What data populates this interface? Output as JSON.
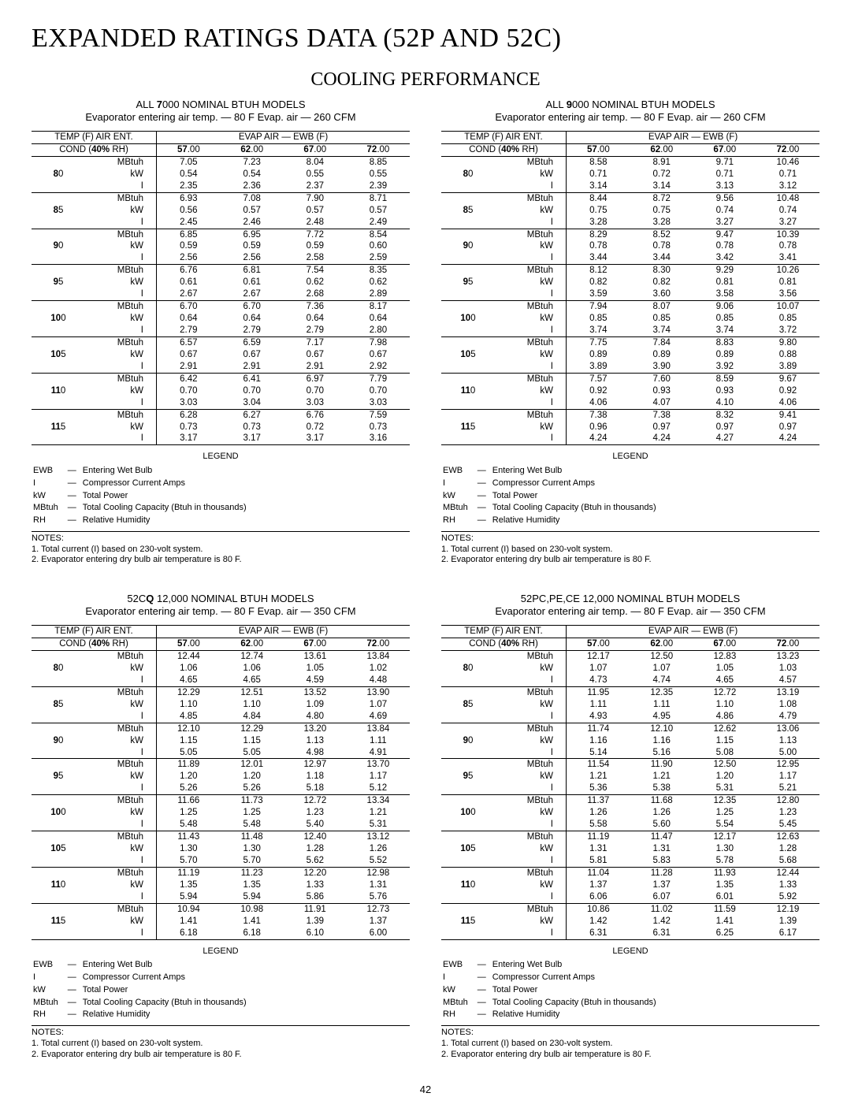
{
  "page": {
    "mainTitle": "EXPANDED RATINGS DATA (52P AND 52C)",
    "sectionTitle": "COOLING PERFORMANCE",
    "pageNumber": "42"
  },
  "common": {
    "tempHeader1": "TEMP (F) AIR ENT.",
    "tempHeader2a": "COND (",
    "tempHeader2b": "40%",
    "tempHeader2c": " RH)",
    "evapHeader": "EVAP AIR — EWB (F)",
    "cols": [
      "57.00",
      "62.00",
      "67.00",
      "72.00"
    ],
    "colsBold": [
      "57",
      "62",
      "67",
      "72"
    ],
    "metrics": [
      "MBtuh",
      "kW",
      "I"
    ],
    "legendTitle": "LEGEND",
    "legend": [
      [
        "EWB",
        "Entering Wet Bulb"
      ],
      [
        "I",
        "Compressor Current Amps"
      ],
      [
        "kW",
        "Total Power"
      ],
      [
        "MBtuh",
        "Total Cooling Capacity (Btuh in thousands)"
      ],
      [
        "RH",
        "Relative Humidity"
      ]
    ],
    "notesTitle": "NOTES:",
    "notes": [
      "1. Total current (I) based on 230-volt system.",
      "2. Evaporator entering dry bulb air temperature is 80 F."
    ]
  },
  "tables": [
    {
      "title1a": "ALL ",
      "title1b": "7",
      "title1c": "000 NOMINAL BTUH MODELS",
      "title2": "Evaporator entering air temp. — 80 F Evap. air — 260 CFM",
      "temps": [
        "80",
        "85",
        "90",
        "95",
        "100",
        "105",
        "110",
        "115"
      ],
      "rows": [
        [
          [
            "7.05",
            "7.23",
            "8.04",
            "8.85"
          ],
          [
            "0.54",
            "0.54",
            "0.55",
            "0.55"
          ],
          [
            "2.35",
            "2.36",
            "2.37",
            "2.39"
          ]
        ],
        [
          [
            "6.93",
            "7.08",
            "7.90",
            "8.71"
          ],
          [
            "0.56",
            "0.57",
            "0.57",
            "0.57"
          ],
          [
            "2.45",
            "2.46",
            "2.48",
            "2.49"
          ]
        ],
        [
          [
            "6.85",
            "6.95",
            "7.72",
            "8.54"
          ],
          [
            "0.59",
            "0.59",
            "0.59",
            "0.60"
          ],
          [
            "2.56",
            "2.56",
            "2.58",
            "2.59"
          ]
        ],
        [
          [
            "6.76",
            "6.81",
            "7.54",
            "8.35"
          ],
          [
            "0.61",
            "0.61",
            "0.62",
            "0.62"
          ],
          [
            "2.67",
            "2.67",
            "2.68",
            "2.89"
          ]
        ],
        [
          [
            "6.70",
            "6.70",
            "7.36",
            "8.17"
          ],
          [
            "0.64",
            "0.64",
            "0.64",
            "0.64"
          ],
          [
            "2.79",
            "2.79",
            "2.79",
            "2.80"
          ]
        ],
        [
          [
            "6.57",
            "6.59",
            "7.17",
            "7.98"
          ],
          [
            "0.67",
            "0.67",
            "0.67",
            "0.67"
          ],
          [
            "2.91",
            "2.91",
            "2.91",
            "2.92"
          ]
        ],
        [
          [
            "6.42",
            "6.41",
            "6.97",
            "7.79"
          ],
          [
            "0.70",
            "0.70",
            "0.70",
            "0.70"
          ],
          [
            "3.03",
            "3.04",
            "3.03",
            "3.03"
          ]
        ],
        [
          [
            "6.28",
            "6.27",
            "6.76",
            "7.59"
          ],
          [
            "0.73",
            "0.73",
            "0.72",
            "0.73"
          ],
          [
            "3.17",
            "3.17",
            "3.17",
            "3.16"
          ]
        ]
      ]
    },
    {
      "title1a": "ALL ",
      "title1b": "9",
      "title1c": "000 NOMINAL BTUH MODELS",
      "title2": "Evaporator entering air temp. — 80 F Evap. air — 260 CFM",
      "temps": [
        "80",
        "85",
        "90",
        "95",
        "100",
        "105",
        "110",
        "115"
      ],
      "rows": [
        [
          [
            "8.58",
            "8.91",
            "9.71",
            "10.46"
          ],
          [
            "0.71",
            "0.72",
            "0.71",
            "0.71"
          ],
          [
            "3.14",
            "3.14",
            "3.13",
            "3.12"
          ]
        ],
        [
          [
            "8.44",
            "8.72",
            "9.56",
            "10.48"
          ],
          [
            "0.75",
            "0.75",
            "0.74",
            "0.74"
          ],
          [
            "3.28",
            "3.28",
            "3.27",
            "3.27"
          ]
        ],
        [
          [
            "8.29",
            "8.52",
            "9.47",
            "10.39"
          ],
          [
            "0.78",
            "0.78",
            "0.78",
            "0.78"
          ],
          [
            "3.44",
            "3.44",
            "3.42",
            "3.41"
          ]
        ],
        [
          [
            "8.12",
            "8.30",
            "9.29",
            "10.26"
          ],
          [
            "0.82",
            "0.82",
            "0.81",
            "0.81"
          ],
          [
            "3.59",
            "3.60",
            "3.58",
            "3.56"
          ]
        ],
        [
          [
            "7.94",
            "8.07",
            "9.06",
            "10.07"
          ],
          [
            "0.85",
            "0.85",
            "0.85",
            "0.85"
          ],
          [
            "3.74",
            "3.74",
            "3.74",
            "3.72"
          ]
        ],
        [
          [
            "7.75",
            "7.84",
            "8.83",
            "9.80"
          ],
          [
            "0.89",
            "0.89",
            "0.89",
            "0.88"
          ],
          [
            "3.89",
            "3.90",
            "3.92",
            "3.89"
          ]
        ],
        [
          [
            "7.57",
            "7.60",
            "8.59",
            "9.67"
          ],
          [
            "0.92",
            "0.93",
            "0.93",
            "0.92"
          ],
          [
            "4.06",
            "4.07",
            "4.10",
            "4.06"
          ]
        ],
        [
          [
            "7.38",
            "7.38",
            "8.32",
            "9.41"
          ],
          [
            "0.96",
            "0.97",
            "0.97",
            "0.97"
          ],
          [
            "4.24",
            "4.24",
            "4.27",
            "4.24"
          ]
        ]
      ]
    },
    {
      "title1a": "52C",
      "title1b": "Q",
      "title1c": " 12,000 NOMINAL BTUH MODELS",
      "title2": "Evaporator entering air temp. — 80 F Evap. air — 350 CFM",
      "temps": [
        "80",
        "85",
        "90",
        "95",
        "100",
        "105",
        "110",
        "115"
      ],
      "rows": [
        [
          [
            "12.44",
            "12.74",
            "13.61",
            "13.84"
          ],
          [
            "1.06",
            "1.06",
            "1.05",
            "1.02"
          ],
          [
            "4.65",
            "4.65",
            "4.59",
            "4.48"
          ]
        ],
        [
          [
            "12.29",
            "12.51",
            "13.52",
            "13.90"
          ],
          [
            "1.10",
            "1.10",
            "1.09",
            "1.07"
          ],
          [
            "4.85",
            "4.84",
            "4.80",
            "4.69"
          ]
        ],
        [
          [
            "12.10",
            "12.29",
            "13.20",
            "13.84"
          ],
          [
            "1.15",
            "1.15",
            "1.13",
            "1.11"
          ],
          [
            "5.05",
            "5.05",
            "4.98",
            "4.91"
          ]
        ],
        [
          [
            "11.89",
            "12.01",
            "12.97",
            "13.70"
          ],
          [
            "1.20",
            "1.20",
            "1.18",
            "1.17"
          ],
          [
            "5.26",
            "5.26",
            "5.18",
            "5.12"
          ]
        ],
        [
          [
            "11.66",
            "11.73",
            "12.72",
            "13.34"
          ],
          [
            "1.25",
            "1.25",
            "1.23",
            "1.21"
          ],
          [
            "5.48",
            "5.48",
            "5.40",
            "5.31"
          ]
        ],
        [
          [
            "11.43",
            "11.48",
            "12.40",
            "13.12"
          ],
          [
            "1.30",
            "1.30",
            "1.28",
            "1.26"
          ],
          [
            "5.70",
            "5.70",
            "5.62",
            "5.52"
          ]
        ],
        [
          [
            "11.19",
            "11.23",
            "12.20",
            "12.98"
          ],
          [
            "1.35",
            "1.35",
            "1.33",
            "1.31"
          ],
          [
            "5.94",
            "5.94",
            "5.86",
            "5.76"
          ]
        ],
        [
          [
            "10.94",
            "10.98",
            "11.91",
            "12.73"
          ],
          [
            "1.41",
            "1.41",
            "1.39",
            "1.37"
          ],
          [
            "6.18",
            "6.18",
            "6.10",
            "6.00"
          ]
        ]
      ]
    },
    {
      "title1a": "",
      "title1b": "",
      "title1c": "52PC,PE,CE 12,000 NOMINAL BTUH MODELS",
      "title2": "Evaporator entering air temp. — 80 F Evap. air — 350 CFM",
      "temps": [
        "80",
        "85",
        "90",
        "95",
        "100",
        "105",
        "110",
        "115"
      ],
      "rows": [
        [
          [
            "12.17",
            "12.50",
            "12.83",
            "13.23"
          ],
          [
            "1.07",
            "1.07",
            "1.05",
            "1.03"
          ],
          [
            "4.73",
            "4.74",
            "4.65",
            "4.57"
          ]
        ],
        [
          [
            "11.95",
            "12.35",
            "12.72",
            "13.19"
          ],
          [
            "1.11",
            "1.11",
            "1.10",
            "1.08"
          ],
          [
            "4.93",
            "4.95",
            "4.86",
            "4.79"
          ]
        ],
        [
          [
            "11.74",
            "12.10",
            "12.62",
            "13.06"
          ],
          [
            "1.16",
            "1.16",
            "1.15",
            "1.13"
          ],
          [
            "5.14",
            "5.16",
            "5.08",
            "5.00"
          ]
        ],
        [
          [
            "11.54",
            "11.90",
            "12.50",
            "12.95"
          ],
          [
            "1.21",
            "1.21",
            "1.20",
            "1.17"
          ],
          [
            "5.36",
            "5.38",
            "5.31",
            "5.21"
          ]
        ],
        [
          [
            "11.37",
            "11.68",
            "12.35",
            "12.80"
          ],
          [
            "1.26",
            "1.26",
            "1.25",
            "1.23"
          ],
          [
            "5.58",
            "5.60",
            "5.54",
            "5.45"
          ]
        ],
        [
          [
            "11.19",
            "11.47",
            "12.17",
            "12.63"
          ],
          [
            "1.31",
            "1.31",
            "1.30",
            "1.28"
          ],
          [
            "5.81",
            "5.83",
            "5.78",
            "5.68"
          ]
        ],
        [
          [
            "11.04",
            "11.28",
            "11.93",
            "12.44"
          ],
          [
            "1.37",
            "1.37",
            "1.35",
            "1.33"
          ],
          [
            "6.06",
            "6.07",
            "6.01",
            "5.92"
          ]
        ],
        [
          [
            "10.86",
            "11.02",
            "11.59",
            "12.19"
          ],
          [
            "1.42",
            "1.42",
            "1.41",
            "1.39"
          ],
          [
            "6.31",
            "6.31",
            "6.25",
            "6.17"
          ]
        ]
      ]
    }
  ]
}
